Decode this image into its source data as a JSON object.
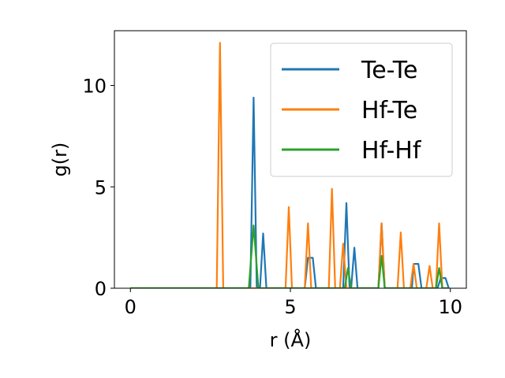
{
  "chart_data": {
    "type": "line",
    "title": "",
    "xlabel": "r (Å)",
    "ylabel": "g(r)",
    "xlim": [
      -0.5,
      10.5
    ],
    "ylim": [
      0,
      12.7
    ],
    "xticks": [
      0,
      5,
      10
    ],
    "yticks": [
      0,
      5,
      10
    ],
    "xtick_labels": [
      "0",
      "5",
      "10"
    ],
    "ytick_labels": [
      "0",
      "5",
      "10"
    ],
    "grid": false,
    "legend_position": "top-right",
    "series": [
      {
        "name": "Te-Te",
        "color": "#1f77b4",
        "points": [
          [
            0,
            0
          ],
          [
            3.75,
            0
          ],
          [
            3.85,
            9.4
          ],
          [
            3.95,
            0
          ],
          [
            4.05,
            0
          ],
          [
            4.15,
            2.7
          ],
          [
            4.25,
            0
          ],
          [
            5.45,
            0
          ],
          [
            5.55,
            1.5
          ],
          [
            5.7,
            1.5
          ],
          [
            5.8,
            0
          ],
          [
            6.65,
            0
          ],
          [
            6.75,
            4.2
          ],
          [
            6.85,
            0
          ],
          [
            6.9,
            0
          ],
          [
            7.0,
            2.0
          ],
          [
            7.1,
            0
          ],
          [
            7.75,
            0
          ],
          [
            7.85,
            3.2
          ],
          [
            7.95,
            0
          ],
          [
            8.8,
            0
          ],
          [
            8.85,
            1.2
          ],
          [
            9.0,
            1.2
          ],
          [
            9.1,
            0
          ],
          [
            9.6,
            0
          ],
          [
            9.7,
            0.5
          ],
          [
            9.85,
            0.5
          ],
          [
            9.95,
            0
          ]
        ]
      },
      {
        "name": "Hf-Te",
        "color": "#ff7f0e",
        "points": [
          [
            0,
            0
          ],
          [
            2.7,
            0
          ],
          [
            2.8,
            12.1
          ],
          [
            2.9,
            0
          ],
          [
            4.85,
            0
          ],
          [
            4.95,
            4.0
          ],
          [
            5.05,
            0
          ],
          [
            5.45,
            0
          ],
          [
            5.55,
            3.2
          ],
          [
            5.65,
            0
          ],
          [
            6.2,
            0
          ],
          [
            6.3,
            4.9
          ],
          [
            6.4,
            0
          ],
          [
            6.55,
            0
          ],
          [
            6.65,
            2.2
          ],
          [
            6.75,
            0
          ],
          [
            7.75,
            0
          ],
          [
            7.85,
            3.2
          ],
          [
            7.95,
            0
          ],
          [
            8.35,
            0
          ],
          [
            8.45,
            2.75
          ],
          [
            8.55,
            0
          ],
          [
            8.75,
            0
          ],
          [
            8.85,
            1.2
          ],
          [
            8.95,
            0
          ],
          [
            9.25,
            0
          ],
          [
            9.35,
            1.1
          ],
          [
            9.45,
            0
          ],
          [
            9.55,
            0
          ],
          [
            9.65,
            3.2
          ],
          [
            9.75,
            0
          ],
          [
            9.95,
            0
          ]
        ]
      },
      {
        "name": "Hf-Hf",
        "color": "#2ca02c",
        "points": [
          [
            0,
            0
          ],
          [
            3.7,
            0
          ],
          [
            3.85,
            3.1
          ],
          [
            4.0,
            0
          ],
          [
            6.7,
            0
          ],
          [
            6.8,
            1.0
          ],
          [
            6.9,
            0
          ],
          [
            7.75,
            0
          ],
          [
            7.85,
            1.6
          ],
          [
            7.95,
            0
          ],
          [
            9.55,
            0
          ],
          [
            9.65,
            1.0
          ],
          [
            9.75,
            0
          ],
          [
            9.95,
            0
          ]
        ]
      }
    ]
  }
}
